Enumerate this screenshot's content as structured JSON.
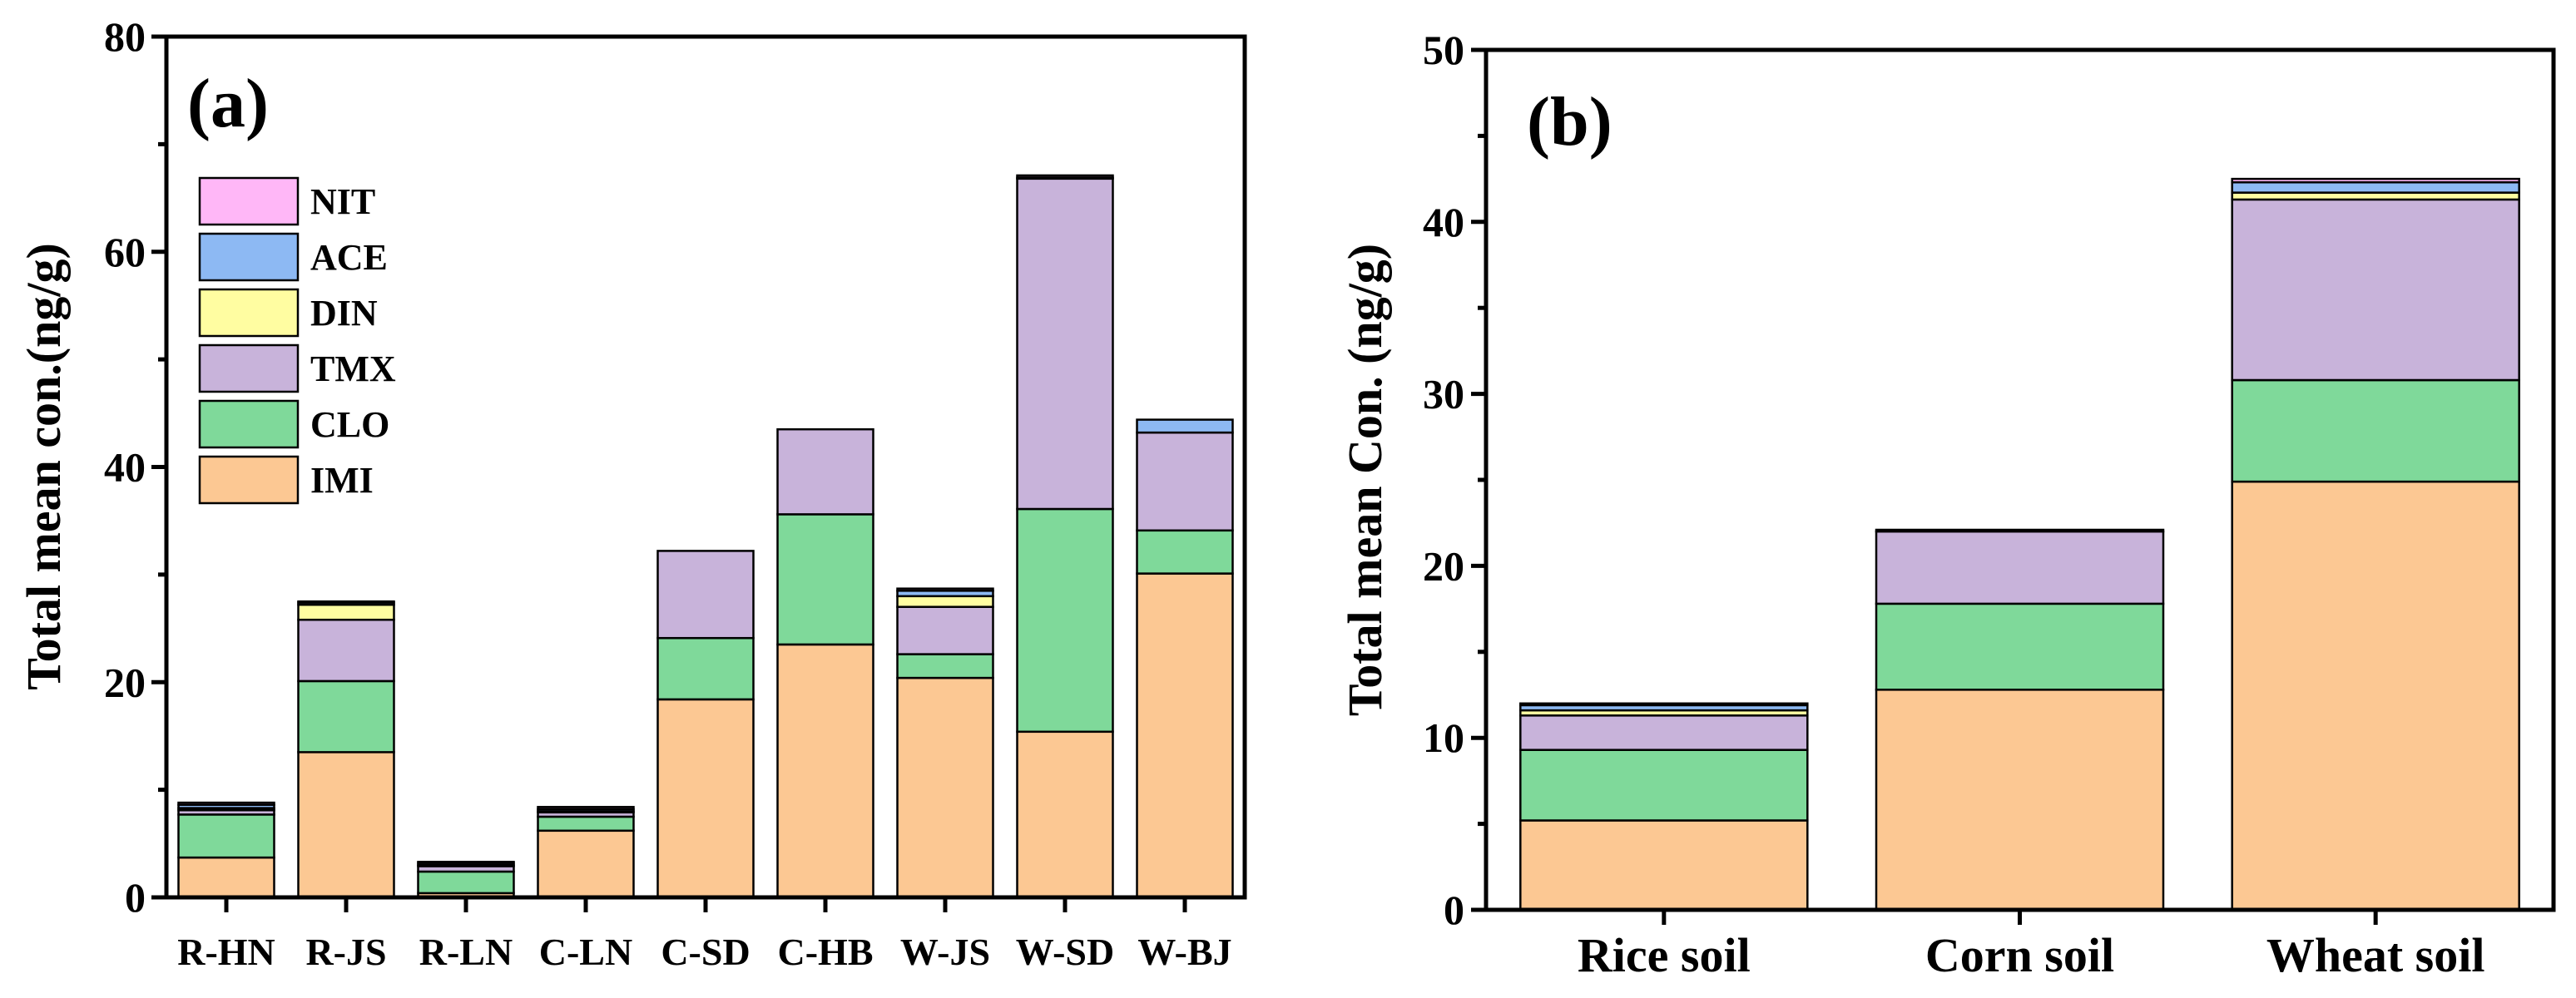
{
  "chart_data": [
    {
      "type": "bar",
      "stacked": true,
      "panel_label": "(a)",
      "title": "",
      "xlabel": "",
      "ylabel": "Total mean con.(ng/g)",
      "ylim": [
        0,
        80
      ],
      "yticks": [
        0,
        20,
        40,
        60,
        80
      ],
      "legend_position": "top-left",
      "categories": [
        "R-HN",
        "R-JS",
        "R-LN",
        "C-LN",
        "C-SD",
        "C-HB",
        "W-JS",
        "W-SD",
        "W-BJ"
      ],
      "series": [
        {
          "name": "IMI",
          "color": "#FCC893",
          "values": [
            3.7,
            13.5,
            0.4,
            6.2,
            18.4,
            23.5,
            20.4,
            15.4,
            30.1
          ]
        },
        {
          "name": "CLO",
          "color": "#7FD99A",
          "values": [
            4.0,
            6.6,
            2.0,
            1.3,
            5.7,
            12.1,
            2.2,
            20.7,
            4.0
          ]
        },
        {
          "name": "TMX",
          "color": "#C8B3DA",
          "values": [
            0.4,
            5.7,
            0.5,
            0.4,
            8.1,
            7.9,
            4.4,
            30.7,
            9.1
          ]
        },
        {
          "name": "DIN",
          "color": "#FFFDA1",
          "values": [
            0.2,
            1.4,
            0.1,
            0.1,
            0.0,
            0.0,
            1.0,
            0.0,
            0.0
          ]
        },
        {
          "name": "ACE",
          "color": "#8DB9F3",
          "values": [
            0.3,
            0.2,
            0.2,
            0.2,
            0.0,
            0.0,
            0.5,
            0.1,
            1.2
          ]
        },
        {
          "name": "NIT",
          "color": "#FFB7F7",
          "values": [
            0.2,
            0.1,
            0.1,
            0.2,
            0.0,
            0.0,
            0.2,
            0.2,
            0.0
          ]
        }
      ]
    },
    {
      "type": "bar",
      "stacked": true,
      "panel_label": "(b)",
      "title": "",
      "xlabel": "",
      "ylabel": "Total mean Con. (ng/g)",
      "ylim": [
        0,
        50
      ],
      "yticks": [
        0,
        10,
        20,
        30,
        40,
        50
      ],
      "categories": [
        "Rice soil",
        "Corn soil",
        "Wheat soil"
      ],
      "series": [
        {
          "name": "IMI",
          "color": "#FCC893",
          "values": [
            5.2,
            12.8,
            24.9
          ]
        },
        {
          "name": "CLO",
          "color": "#7FD99A",
          "values": [
            4.1,
            5.0,
            5.9
          ]
        },
        {
          "name": "TMX",
          "color": "#C8B3DA",
          "values": [
            2.0,
            4.2,
            10.5
          ]
        },
        {
          "name": "DIN",
          "color": "#FFFDA1",
          "values": [
            0.3,
            0.0,
            0.4
          ]
        },
        {
          "name": "ACE",
          "color": "#8DB9F3",
          "values": [
            0.3,
            0.0,
            0.6
          ]
        },
        {
          "name": "NIT",
          "color": "#FFB7F7",
          "values": [
            0.1,
            0.1,
            0.2
          ]
        }
      ]
    }
  ]
}
